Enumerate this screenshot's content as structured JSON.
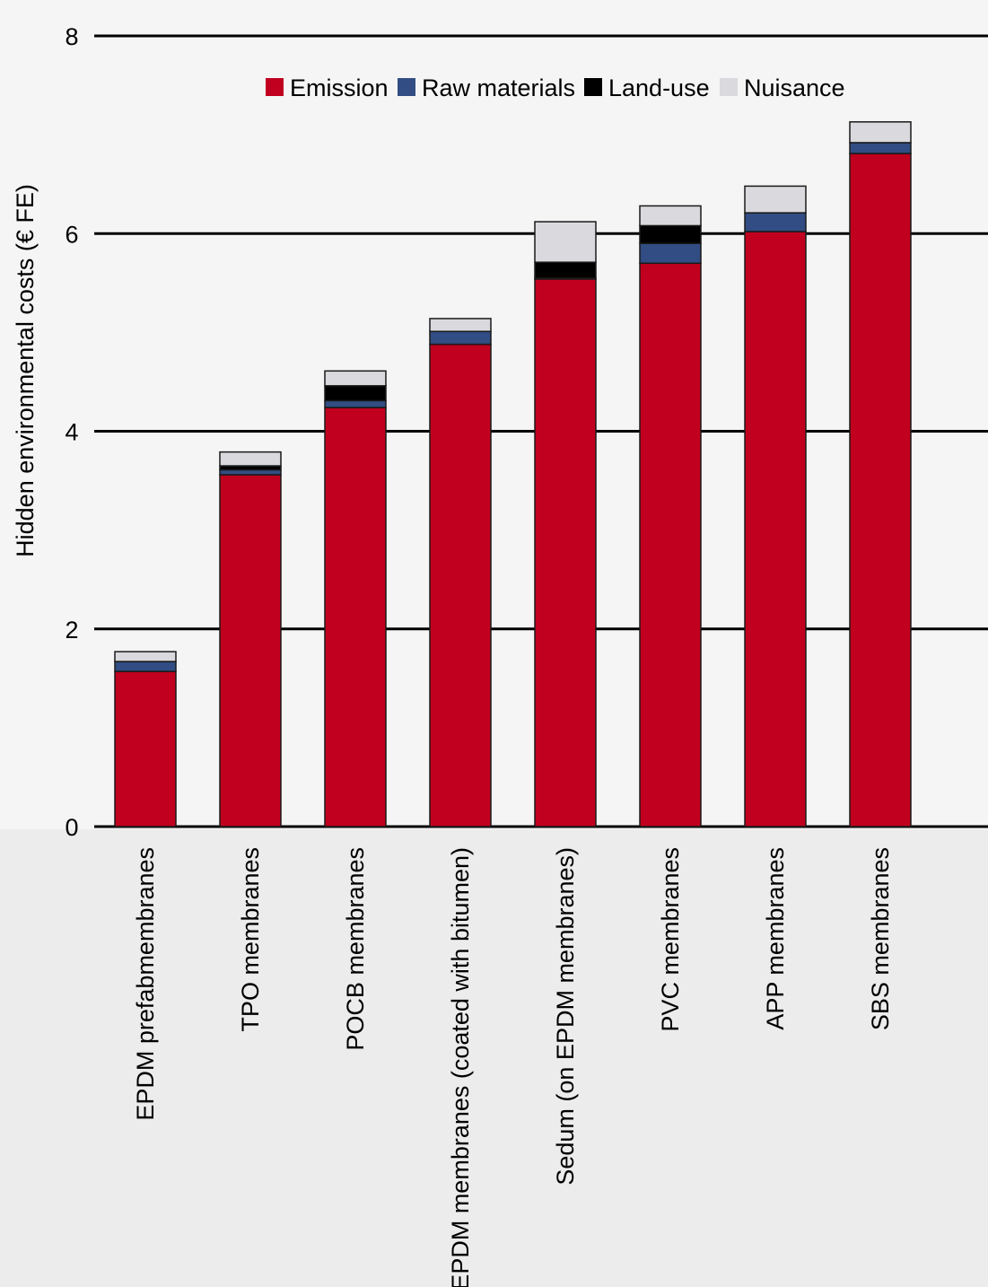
{
  "chart_data": {
    "type": "bar",
    "stacked": true,
    "ylabel": "Hidden environmental costs (€  FE)",
    "xlabel": "",
    "ylim": [
      0,
      8
    ],
    "yticks": [
      "0",
      "2",
      "4",
      "6",
      "8"
    ],
    "grid": "horizontal",
    "legend_position": "top",
    "categories": [
      "EPDM prefabmembranes",
      "TPO membranes",
      "POCB membranes",
      "EPDM membranes (coated with bitumen)",
      "Sedum (on EPDM membranes)",
      "PVC membranes",
      "APP membranes",
      "SBS membranes"
    ],
    "series": [
      {
        "name": "Emission",
        "color": "#c0001e",
        "values": [
          1.57,
          3.56,
          4.24,
          4.88,
          5.54,
          5.7,
          6.02,
          6.81
        ]
      },
      {
        "name": "Raw materials",
        "color": "#314d83",
        "values": [
          0.1,
          0.05,
          0.07,
          0.13,
          0.01,
          0.2,
          0.19,
          0.11
        ]
      },
      {
        "name": "Land-use",
        "color": "#000000",
        "values": [
          0.0,
          0.04,
          0.15,
          0.0,
          0.16,
          0.18,
          0.0,
          0.0
        ]
      },
      {
        "name": "Nuisance",
        "color": "#d9d9de",
        "values": [
          0.1,
          0.14,
          0.15,
          0.13,
          0.41,
          0.2,
          0.27,
          0.21
        ]
      }
    ]
  }
}
